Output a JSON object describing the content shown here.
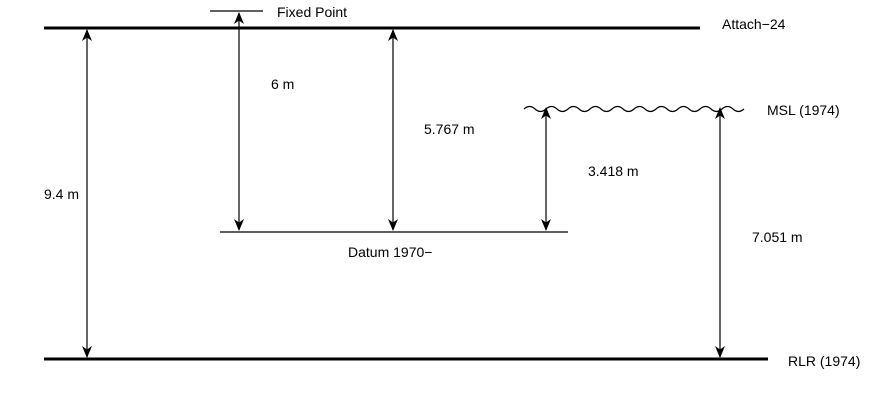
{
  "levels": {
    "attach": "Attach−24",
    "fixed_point": "Fixed Point",
    "msl": "MSL (1974)",
    "datum": "Datum 1970−",
    "rlr": "RLR (1974)"
  },
  "measurements": {
    "attach_to_rlr": "9.4 m",
    "fixed_point_to_datum": "6 m",
    "attach_to_datum": "5.767 m",
    "msl_to_datum": "3.418 m",
    "msl_to_rlr": "7.051 m"
  },
  "colors": {
    "ink": "#000000",
    "background": "#ffffff"
  }
}
